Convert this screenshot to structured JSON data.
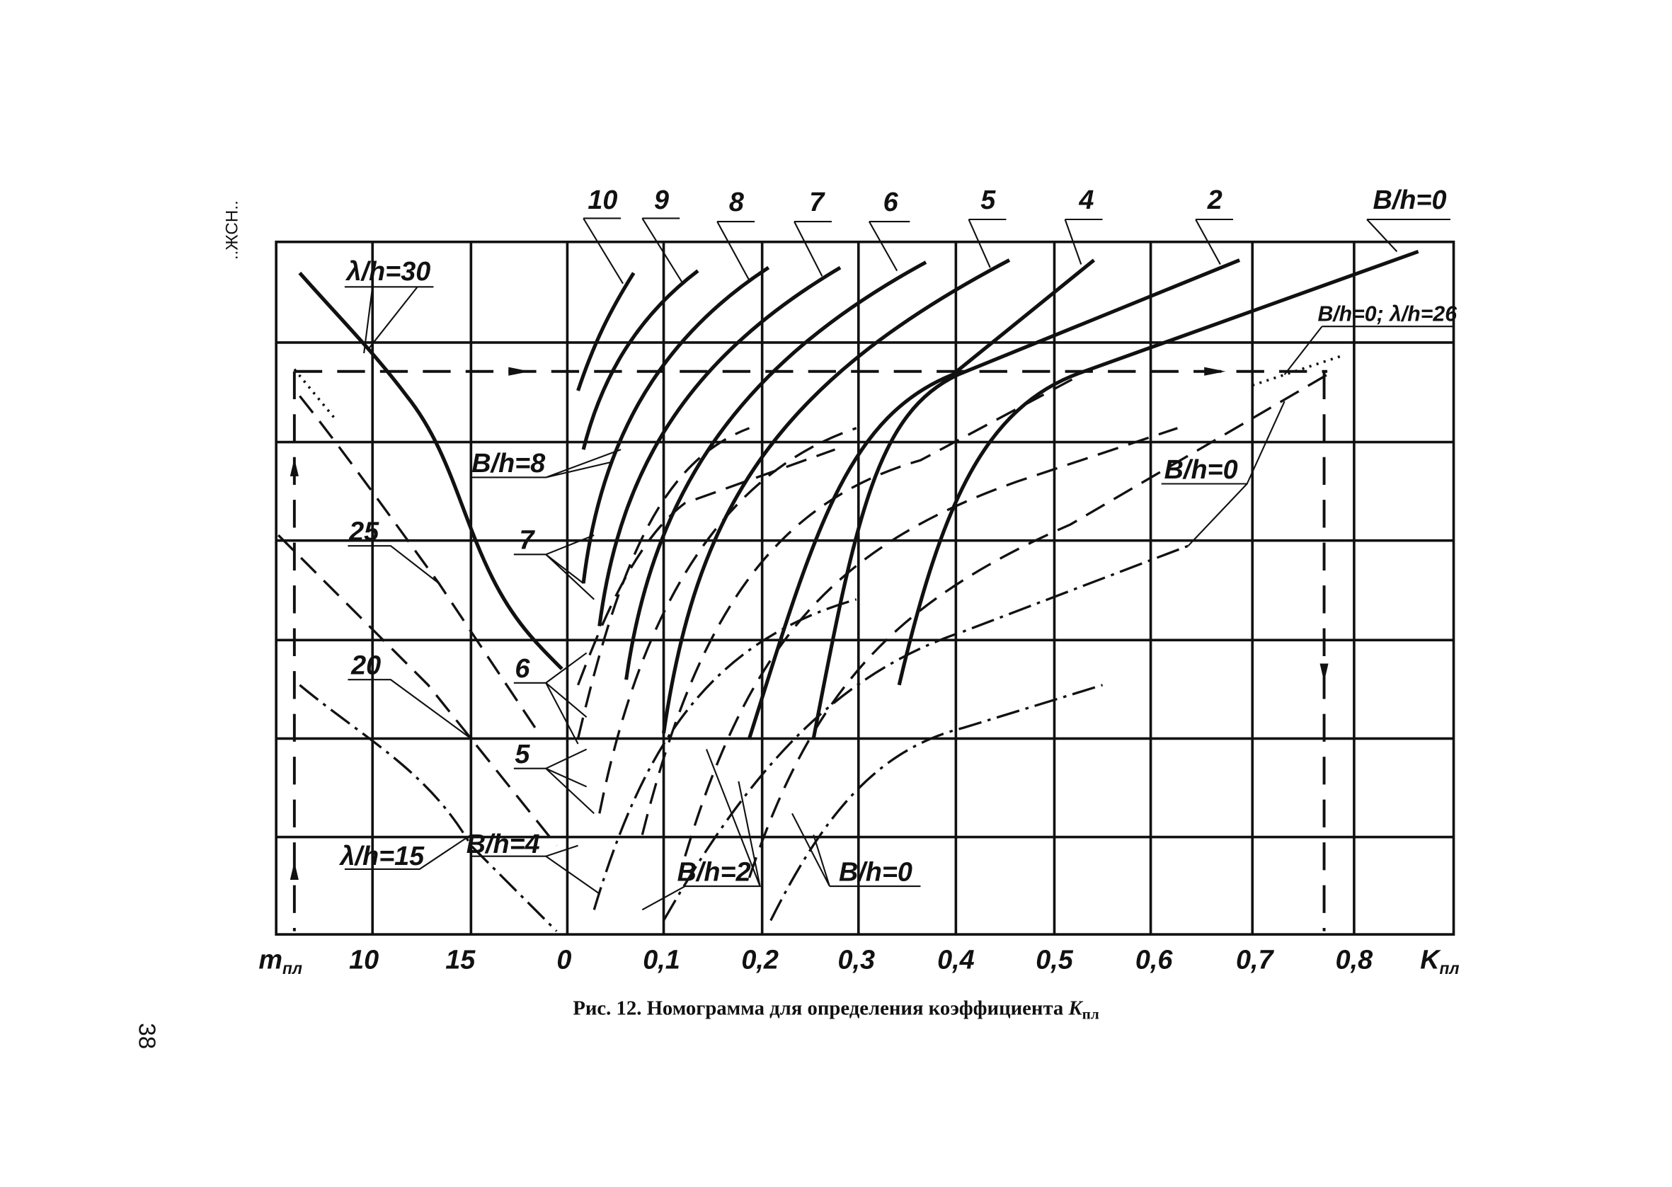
{
  "header_mark": "..ЖСН..",
  "page_number": "38",
  "top_labels": [
    "10",
    "9",
    "8",
    "7",
    "6",
    "5",
    "4",
    "2",
    "B/h=0"
  ],
  "x_axis_labels": [
    {
      "symbol": "m",
      "subscript": "пл"
    },
    "10",
    "15",
    "0",
    "0,1",
    "0,2",
    "0,3",
    "0,4",
    "0,5",
    "0,6",
    "0,7",
    "0,8",
    {
      "symbol": "K",
      "subscript": "пл"
    }
  ],
  "curve_labels": [
    "λ/h=30",
    "B/h=8",
    "7",
    "25",
    "20",
    "6",
    "5",
    "λ/h=15",
    "B/h=4",
    "B/h=2",
    "B/h=0",
    "B/h=0",
    "B/h=0; λ/h=26"
  ],
  "caption": {
    "text": "Рис. 12. Номограмма для определения коэффициента",
    "symbol": "K",
    "subscript": "пл"
  }
}
